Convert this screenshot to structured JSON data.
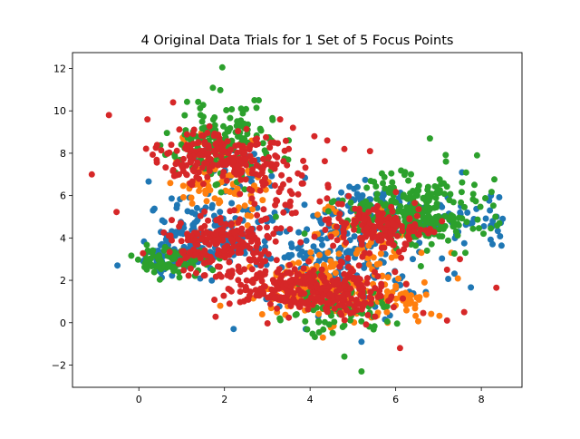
{
  "chart_data": {
    "type": "scatter",
    "title": "4 Original Data Trials for 1 Set of 5 Focus Points",
    "xlabel": "",
    "ylabel": "",
    "xlim": [
      -1.55,
      8.95
    ],
    "ylim": [
      -3.05,
      12.75
    ],
    "xticks": [
      0,
      2,
      4,
      6,
      8
    ],
    "yticks": [
      -2,
      0,
      2,
      4,
      6,
      8,
      10,
      12
    ],
    "grid": false,
    "legend": "none",
    "marker_size": 3.5,
    "series": [
      {
        "color": "#1f77b4",
        "clusters": [
          {
            "cx": 0.7,
            "cy": 3.0,
            "sx": 0.35,
            "sy": 0.45,
            "n": 60
          },
          {
            "cx": 1.6,
            "cy": 4.2,
            "sx": 0.7,
            "sy": 0.8,
            "n": 140
          },
          {
            "cx": 4.6,
            "cy": 3.0,
            "sx": 1.0,
            "sy": 1.4,
            "n": 220
          },
          {
            "cx": 5.7,
            "cy": 5.5,
            "sx": 0.8,
            "sy": 0.6,
            "n": 70
          },
          {
            "cx": 7.8,
            "cy": 4.8,
            "sx": 0.4,
            "sy": 0.5,
            "n": 30
          },
          {
            "cx": 2.2,
            "cy": 6.8,
            "sx": 0.5,
            "sy": 0.8,
            "n": 30
          }
        ],
        "points": [
          [
            -0.5,
            2.7
          ],
          [
            8.5,
            4.9
          ],
          [
            8.2,
            5.3
          ],
          [
            3.9,
            -0.3
          ],
          [
            5.2,
            -0.9
          ]
        ]
      },
      {
        "color": "#ff7f0e",
        "clusters": [
          {
            "cx": 4.3,
            "cy": 1.6,
            "sx": 0.7,
            "sy": 0.7,
            "n": 220
          },
          {
            "cx": 2.0,
            "cy": 6.6,
            "sx": 0.6,
            "sy": 0.8,
            "n": 90
          },
          {
            "cx": 6.2,
            "cy": 1.2,
            "sx": 0.4,
            "sy": 0.6,
            "n": 40
          },
          {
            "cx": 5.3,
            "cy": 4.0,
            "sx": 0.6,
            "sy": 0.8,
            "n": 50
          }
        ],
        "points": [
          [
            1.9,
            0.8
          ],
          [
            4.3,
            -0.7
          ],
          [
            6.6,
            3.3
          ],
          [
            7.3,
            3.3
          ],
          [
            0.9,
            7.6
          ]
        ]
      },
      {
        "color": "#2ca02c",
        "clusters": [
          {
            "cx": 6.5,
            "cy": 5.2,
            "sx": 0.8,
            "sy": 0.9,
            "n": 280
          },
          {
            "cx": 0.8,
            "cy": 2.9,
            "sx": 0.4,
            "sy": 0.35,
            "n": 80
          },
          {
            "cx": 2.0,
            "cy": 8.5,
            "sx": 0.6,
            "sy": 0.9,
            "n": 160
          },
          {
            "cx": 4.6,
            "cy": 0.7,
            "sx": 0.6,
            "sy": 0.6,
            "n": 80
          }
        ],
        "points": [
          [
            1.95,
            12.05
          ],
          [
            2.8,
            10.5
          ],
          [
            2.7,
            10.5
          ],
          [
            5.2,
            -2.3
          ],
          [
            4.8,
            -1.6
          ],
          [
            7.9,
            7.9
          ],
          [
            6.8,
            8.7
          ],
          [
            3.2,
            5.0
          ]
        ]
      },
      {
        "color": "#d62728",
        "clusters": [
          {
            "cx": 1.8,
            "cy": 7.8,
            "sx": 0.7,
            "sy": 0.6,
            "n": 200
          },
          {
            "cx": 2.0,
            "cy": 3.8,
            "sx": 0.7,
            "sy": 0.7,
            "n": 190
          },
          {
            "cx": 4.4,
            "cy": 1.5,
            "sx": 0.8,
            "sy": 0.6,
            "n": 230
          },
          {
            "cx": 5.6,
            "cy": 4.5,
            "sx": 0.6,
            "sy": 0.55,
            "n": 160
          },
          {
            "cx": 3.0,
            "cy": 1.8,
            "sx": 0.6,
            "sy": 0.5,
            "n": 90
          },
          {
            "cx": 3.3,
            "cy": 6.5,
            "sx": 0.6,
            "sy": 0.9,
            "n": 50
          }
        ],
        "points": [
          [
            -1.1,
            7.0
          ],
          [
            -0.7,
            9.8
          ],
          [
            0.2,
            9.6
          ],
          [
            0.8,
            10.4
          ],
          [
            8.35,
            1.65
          ],
          [
            7.6,
            0.5
          ],
          [
            7.2,
            0.1
          ],
          [
            6.1,
            -1.2
          ],
          [
            3.3,
            9.6
          ],
          [
            3.6,
            9.2
          ],
          [
            4.1,
            8.8
          ],
          [
            4.4,
            8.6
          ],
          [
            4.8,
            8.2
          ],
          [
            5.4,
            8.1
          ],
          [
            7.5,
            3.0
          ],
          [
            7.2,
            2.5
          ]
        ]
      }
    ]
  }
}
